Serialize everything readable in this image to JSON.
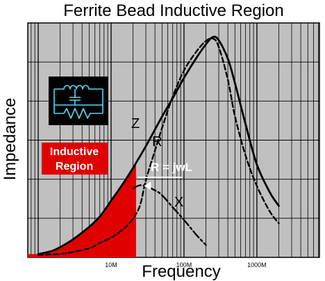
{
  "chart_data": {
    "type": "line",
    "title": "Ferrite Bead Inductive Region",
    "xlabel": "Frequency",
    "ylabel": "Impedance",
    "x_scale": "log",
    "xlim": [
      1,
      3000
    ],
    "y_axis_ticks_labeled": false,
    "grid": true,
    "x_tick_labels": [
      {
        "label": "10M",
        "value": 10
      },
      {
        "label": "100M",
        "value": 100
      },
      {
        "label": "1000M",
        "value": 1000
      }
    ],
    "series": [
      {
        "name": "Z",
        "style": "solid",
        "x": [
          1,
          1.5,
          2,
          3,
          5,
          7,
          10,
          15,
          20,
          30,
          50,
          70,
          100,
          150,
          200,
          250,
          300,
          400,
          500,
          700,
          1000,
          1500,
          2000
        ],
        "y": [
          0.3,
          1.1,
          2.2,
          4.3,
          7.7,
          10.5,
          14.8,
          19.8,
          23.7,
          29.6,
          37.6,
          42.6,
          48.1,
          53.7,
          57.2,
          59.2,
          58.3,
          53.3,
          46.7,
          35.5,
          24.6,
          17.1,
          13.4
        ]
      },
      {
        "name": "R",
        "style": "dashed",
        "x": [
          1,
          2,
          3,
          5,
          7,
          10,
          15,
          20,
          25,
          30,
          40,
          50,
          70,
          100,
          150,
          200,
          250,
          300,
          400,
          500,
          700,
          1000,
          1500,
          2000
        ],
        "y": [
          0.1,
          0.4,
          0.9,
          1.9,
          3.4,
          4.8,
          7.3,
          10.0,
          13.6,
          20.4,
          28.4,
          34.5,
          43.0,
          50.1,
          55.4,
          58.1,
          58.8,
          56.5,
          47.6,
          37.7,
          27.0,
          18.8,
          11.9,
          8.7
        ]
      },
      {
        "name": "X",
        "style": "dash-dot",
        "x": [
          20,
          25,
          30,
          40,
          50,
          70,
          100,
          150,
          200
        ],
        "y": [
          18.2,
          19.0,
          18.7,
          17.6,
          16.3,
          13.0,
          9.6,
          5.4,
          2.8
        ]
      }
    ],
    "annotations": [
      {
        "text": "Inductive Region",
        "kind": "shaded-region",
        "x_range": [
          1,
          22
        ],
        "color": "#e00000"
      },
      {
        "text": "R = jwL",
        "kind": "arrow-label",
        "points_to": {
          "x": 27,
          "y": 18.8
        }
      }
    ],
    "colors": {
      "plot_background": "#c0c0c0",
      "grid": "#000000",
      "inductive_region": "#e00000",
      "curves": "#000000",
      "inset_background": "#000000",
      "inset_circuit": "#5fd4f2"
    },
    "inset": {
      "kind": "circuit-schematic",
      "icon": "ferrite-bead-equivalent-circuit-icon"
    }
  }
}
